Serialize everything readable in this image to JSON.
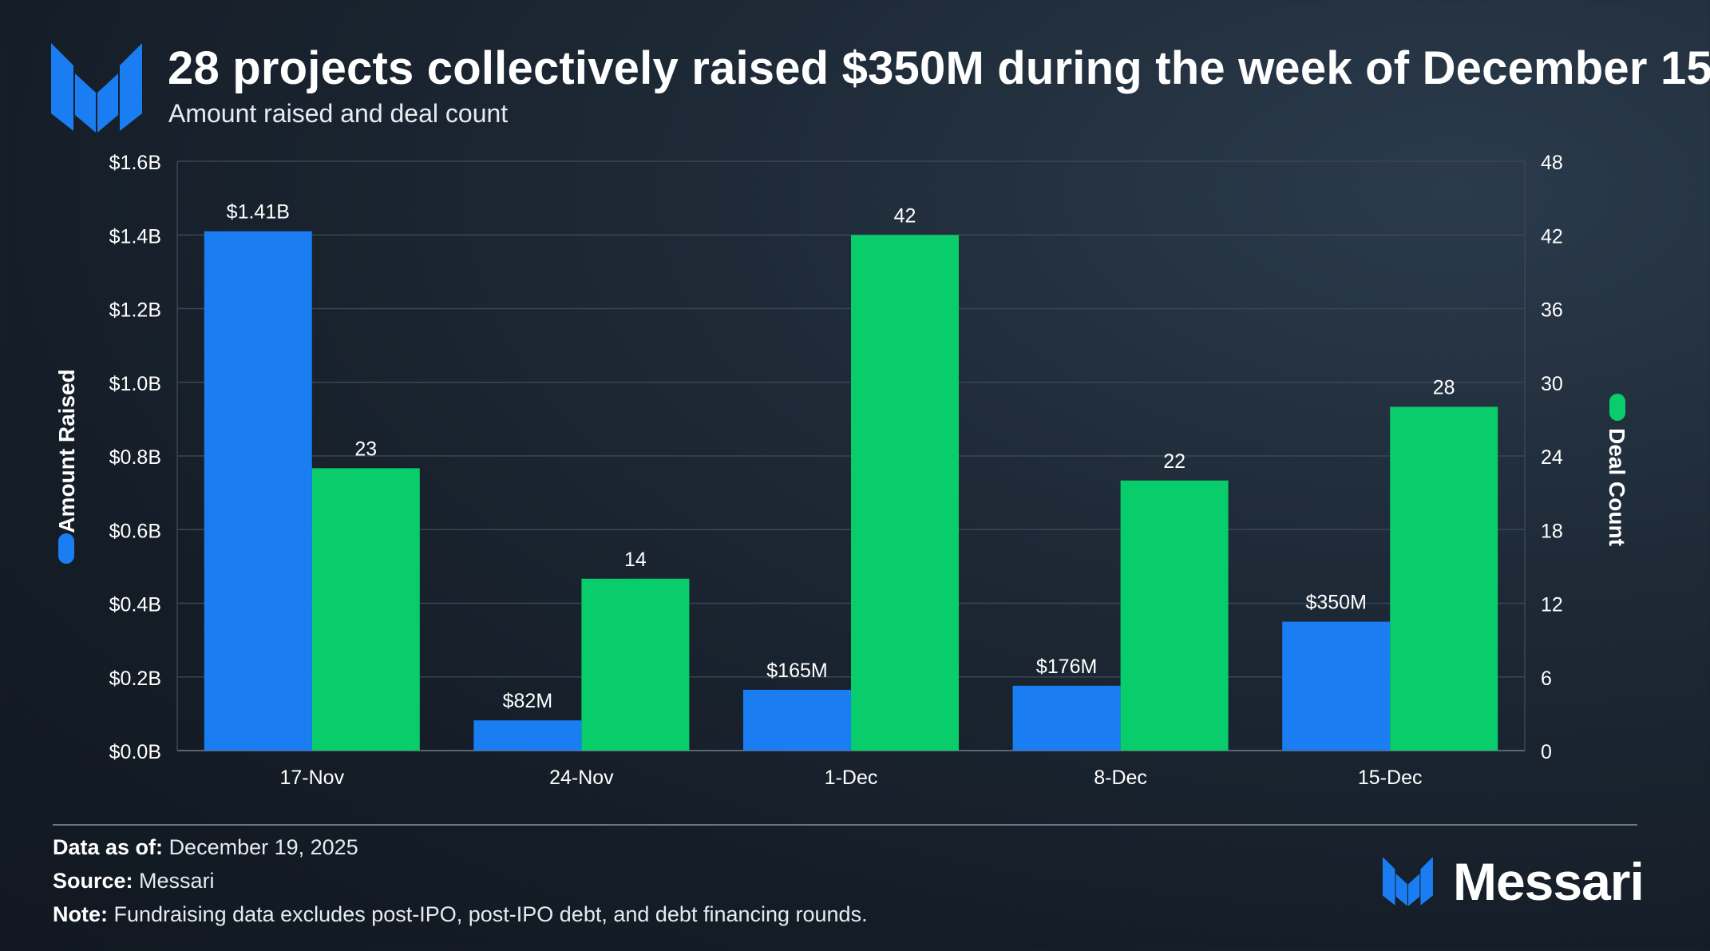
{
  "title": "28 projects collectively raised $350M during the week of December 15",
  "subtitle": "Amount raised and deal count",
  "footer": {
    "data_as_of_label": "Data as of:",
    "data_as_of_value": "December 19, 2025",
    "source_label": "Source:",
    "source_value": "Messari",
    "note_label": "Note:",
    "note_value": "Fundraising data excludes post-IPO, post-IPO debt, and debt financing rounds."
  },
  "brand": {
    "name": "Messari"
  },
  "colors": {
    "amount": "#1a7ef2",
    "deals": "#09cc6b",
    "grid": "#3a4654",
    "text": "#ffffff"
  },
  "chart_data": {
    "type": "bar",
    "categories": [
      "17-Nov",
      "24-Nov",
      "1-Dec",
      "8-Dec",
      "15-Dec"
    ],
    "series": [
      {
        "name": "Amount Raised",
        "axis": "left",
        "values": [
          1.41,
          0.082,
          0.165,
          0.176,
          0.35
        ],
        "labels": [
          "$1.41B",
          "$82M",
          "$165M",
          "$176M",
          "$350M"
        ]
      },
      {
        "name": "Deal Count",
        "axis": "right",
        "values": [
          23,
          14,
          42,
          22,
          28
        ],
        "labels": [
          "23",
          "14",
          "42",
          "22",
          "28"
        ]
      }
    ],
    "ylabel_left": "Amount Raised",
    "ylabel_right": "Deal Count",
    "ylim_left": [
      0,
      1.6
    ],
    "ylim_right": [
      0,
      48
    ],
    "yticks_left": [
      "$0.0B",
      "$0.2B",
      "$0.4B",
      "$0.6B",
      "$0.8B",
      "$1.0B",
      "$1.2B",
      "$1.4B",
      "$1.6B"
    ],
    "yticks_right": [
      "0",
      "6",
      "12",
      "18",
      "24",
      "30",
      "36",
      "42",
      "48"
    ],
    "grid": true
  }
}
